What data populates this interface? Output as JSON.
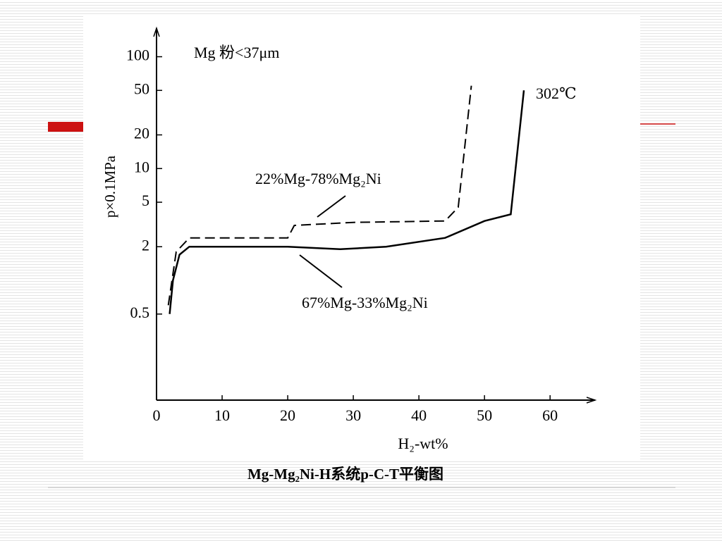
{
  "chart_data": {
    "type": "line",
    "annotation": "Mg 粉<37μm",
    "temperature": "302℃",
    "x_label": "H₂-wt%",
    "y_label": "p×0.1MPa",
    "caption": "Mg-Mg₂Ni-H系统p-C-T平衡图",
    "log_y": true,
    "xlim": [
      0,
      66
    ],
    "xticks": [
      0,
      10,
      20,
      30,
      40,
      50,
      60
    ],
    "ylim": [
      0.085,
      180
    ],
    "yticks": [
      0.5,
      2,
      5,
      10,
      20,
      50,
      100
    ],
    "series": [
      {
        "name": "22%Mg-78%Mg₂Ni",
        "color": "#000000",
        "dashed": true,
        "x": [
          1.8,
          3,
          5,
          20,
          21,
          30,
          44,
          46,
          48
        ],
        "values": [
          0.6,
          1.8,
          2.4,
          2.4,
          3.1,
          3.3,
          3.4,
          4.5,
          55
        ]
      },
      {
        "name": "67%Mg-33%Mg₂Ni",
        "color": "#000000",
        "dashed": false,
        "x": [
          2,
          2.5,
          3.5,
          5,
          20,
          28,
          35,
          44,
          50,
          54,
          56
        ],
        "values": [
          0.5,
          1.0,
          1.7,
          2.0,
          2.0,
          1.9,
          2.0,
          2.4,
          3.4,
          3.9,
          50
        ]
      }
    ]
  }
}
